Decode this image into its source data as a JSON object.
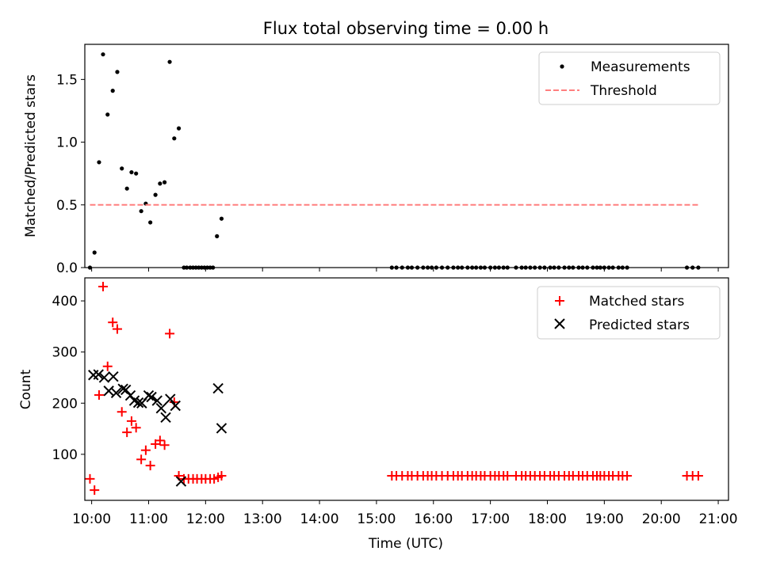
{
  "chart_data": [
    {
      "type": "scatter",
      "title": "Flux total observing time = 0.00 h",
      "xlabel": "",
      "ylabel": "Matched/Predicted stars",
      "xlim": [
        9.88,
        21.18
      ],
      "ylim": [
        0,
        1.78
      ],
      "yticks": [
        0,
        0.5,
        1.0,
        1.5
      ],
      "ytick_labels": [
        "0.0",
        "0.5",
        "1.0",
        "1.5"
      ],
      "legend_position": "top-right",
      "series": [
        {
          "name": "Measurements",
          "marker": "dot",
          "color": "#000000",
          "x": [
            9.97,
            10.05,
            10.13,
            10.2,
            10.28,
            10.37,
            10.45,
            10.53,
            10.62,
            10.7,
            10.78,
            10.87,
            10.95,
            11.03,
            11.12,
            11.2,
            11.28,
            11.37,
            11.45,
            11.53,
            11.62,
            11.67,
            11.73,
            11.78,
            11.83,
            11.88,
            11.93,
            11.98,
            12.03,
            12.08,
            12.13,
            12.2,
            12.28,
            15.27,
            15.35,
            15.45,
            15.55,
            15.62,
            15.72,
            15.82,
            15.9,
            15.97,
            16.05,
            16.15,
            16.25,
            16.35,
            16.43,
            16.5,
            16.6,
            16.68,
            16.75,
            16.83,
            16.9,
            17.0,
            17.08,
            17.15,
            17.23,
            17.3,
            17.45,
            17.55,
            17.62,
            17.7,
            17.78,
            17.87,
            17.95,
            18.05,
            18.12,
            18.2,
            18.3,
            18.38,
            18.45,
            18.55,
            18.62,
            18.7,
            18.8,
            18.87,
            18.93,
            19.0,
            19.08,
            19.15,
            19.25,
            19.32,
            19.4,
            20.45,
            20.55,
            20.65
          ],
          "y": [
            0.0,
            0.12,
            0.84,
            1.7,
            1.22,
            1.41,
            1.56,
            0.79,
            0.63,
            0.76,
            0.75,
            0.45,
            0.51,
            0.36,
            0.58,
            0.67,
            0.68,
            1.64,
            1.03,
            1.11,
            0.0,
            0.0,
            0.0,
            0.0,
            0.0,
            0.0,
            0.0,
            0.0,
            0.0,
            0.0,
            0.0,
            0.25,
            0.39,
            0.0,
            0.0,
            0.0,
            0.0,
            0.0,
            0.0,
            0.0,
            0.0,
            0.0,
            0.0,
            0.0,
            0.0,
            0.0,
            0.0,
            0.0,
            0.0,
            0.0,
            0.0,
            0.0,
            0.0,
            0.0,
            0.0,
            0.0,
            0.0,
            0.0,
            0.0,
            0.0,
            0.0,
            0.0,
            0.0,
            0.0,
            0.0,
            0.0,
            0.0,
            0.0,
            0.0,
            0.0,
            0.0,
            0.0,
            0.0,
            0.0,
            0.0,
            0.0,
            0.0,
            0.0,
            0.0,
            0.0,
            0.0,
            0.0,
            0.0,
            0.0,
            0.0,
            0.0
          ]
        },
        {
          "name": "Threshold",
          "marker": "dashed-line",
          "color": "#ff7f7f",
          "x": [
            9.97,
            20.65
          ],
          "y": [
            0.5,
            0.5
          ]
        }
      ]
    },
    {
      "type": "scatter",
      "title": "",
      "xlabel": "Time (UTC)",
      "ylabel": "Count",
      "xlim": [
        9.88,
        21.18
      ],
      "ylim": [
        10,
        445
      ],
      "yticks": [
        100,
        200,
        300,
        400
      ],
      "ytick_labels": [
        "100",
        "200",
        "300",
        "400"
      ],
      "xticks": [
        10,
        11,
        12,
        13,
        14,
        15,
        16,
        17,
        18,
        19,
        20,
        21
      ],
      "xtick_labels": [
        "10:00",
        "11:00",
        "12:00",
        "13:00",
        "14:00",
        "15:00",
        "16:00",
        "17:00",
        "18:00",
        "19:00",
        "20:00",
        "21:00"
      ],
      "legend_position": "top-right",
      "series": [
        {
          "name": "Matched stars",
          "marker": "plus",
          "color": "#ff0000",
          "x": [
            9.97,
            10.05,
            10.13,
            10.2,
            10.28,
            10.37,
            10.45,
            10.53,
            10.62,
            10.7,
            10.78,
            10.87,
            10.95,
            11.03,
            11.12,
            11.2,
            11.28,
            11.37,
            11.45,
            11.53,
            11.62,
            11.7,
            11.78,
            11.85,
            11.93,
            12.0,
            12.08,
            12.15,
            12.22,
            12.28,
            15.27,
            15.35,
            15.45,
            15.55,
            15.62,
            15.72,
            15.82,
            15.9,
            15.97,
            16.05,
            16.15,
            16.25,
            16.35,
            16.43,
            16.5,
            16.6,
            16.68,
            16.75,
            16.83,
            16.9,
            17.0,
            17.08,
            17.15,
            17.23,
            17.3,
            17.45,
            17.55,
            17.62,
            17.7,
            17.78,
            17.87,
            17.95,
            18.05,
            18.12,
            18.2,
            18.3,
            18.38,
            18.45,
            18.55,
            18.62,
            18.7,
            18.8,
            18.87,
            18.93,
            19.0,
            19.08,
            19.15,
            19.25,
            19.32,
            19.4,
            20.45,
            20.55,
            20.65
          ],
          "y": [
            52,
            30,
            216,
            428,
            272,
            358,
            345,
            183,
            143,
            165,
            152,
            90,
            108,
            78,
            120,
            127,
            118,
            336,
            202,
            58,
            52,
            52,
            52,
            52,
            52,
            52,
            52,
            52,
            55,
            58,
            58,
            58,
            58,
            58,
            58,
            58,
            58,
            58,
            58,
            58,
            58,
            58,
            58,
            58,
            58,
            58,
            58,
            58,
            58,
            58,
            58,
            58,
            58,
            58,
            58,
            58,
            58,
            58,
            58,
            58,
            58,
            58,
            58,
            58,
            58,
            58,
            58,
            58,
            58,
            58,
            58,
            58,
            58,
            58,
            58,
            58,
            58,
            58,
            58,
            58,
            58,
            58,
            58
          ]
        },
        {
          "name": "Predicted stars",
          "marker": "x",
          "color": "#000000",
          "x": [
            10.03,
            10.12,
            10.22,
            10.3,
            10.38,
            10.43,
            10.55,
            10.6,
            10.68,
            10.75,
            10.82,
            10.88,
            11.0,
            11.05,
            11.15,
            11.22,
            11.3,
            11.38,
            11.47,
            11.57,
            12.22,
            12.28
          ],
          "y": [
            255,
            256,
            250,
            224,
            252,
            220,
            228,
            226,
            215,
            205,
            201,
            200,
            215,
            212,
            205,
            190,
            172,
            208,
            195,
            47,
            229,
            151
          ]
        }
      ]
    }
  ]
}
